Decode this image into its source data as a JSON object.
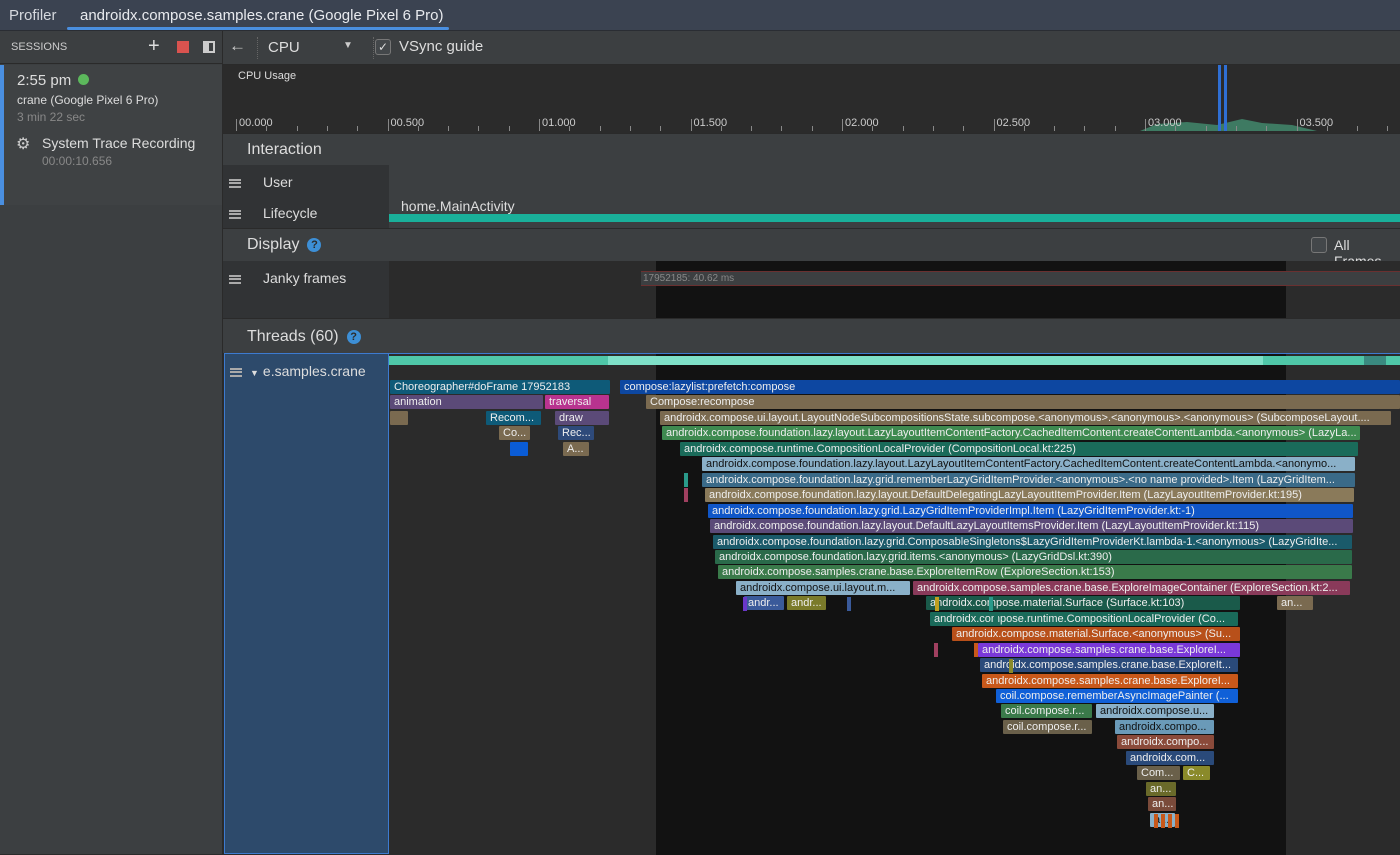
{
  "tabs": {
    "profiler": "Profiler",
    "active": "androidx.compose.samples.crane (Google Pixel 6 Pro)"
  },
  "sidebar": {
    "title": "SESSIONS",
    "session": {
      "time": "2:55 pm",
      "status_color": "#5cb85c",
      "device": "crane (Google Pixel 6 Pro)",
      "duration": "3 min 22 sec",
      "recording_title": "System Trace Recording",
      "recording_duration": "00:00:10.656"
    }
  },
  "toolbar": {
    "profiler_select": "CPU",
    "vsync_label": "VSync guide",
    "vsync_checked": true
  },
  "cpu": {
    "label": "CPU Usage",
    "ticks": [
      "00.000",
      "00.500",
      "01.000",
      "01.500",
      "02.000",
      "02.500",
      "03.000",
      "03.500"
    ]
  },
  "interaction": {
    "title": "Interaction",
    "rows": [
      "User",
      "Lifecycle"
    ],
    "lifecycle_event": "home.MainActivity"
  },
  "display": {
    "title": "Display",
    "all_frames_label": "All Frames",
    "all_frames_checked": false,
    "janky_label": "Janky frames",
    "janky_frame": "17952185: 40.62 ms"
  },
  "threads": {
    "title": "Threads (60)",
    "thread_name": "e.samples.crane",
    "slices": [
      {
        "label": "Choreographer#doFrame 17952183",
        "color": "#0e5a78"
      },
      {
        "label": "compose:lazylist:prefetch:compose",
        "color": "#0d47a1"
      },
      {
        "label": "animation",
        "color": "#5b4a78"
      },
      {
        "label": "traversal",
        "color": "#b8338f"
      },
      {
        "label": "Compose:recompose",
        "color": "#7a6a50"
      },
      {
        "label": "",
        "color": "#7a6a50"
      },
      {
        "label": "Recom...",
        "color": "#0e5a78"
      },
      {
        "label": "draw",
        "color": "#5b4a78"
      },
      {
        "label": "androidx.compose.ui.layout.LayoutNodeSubcompositionsState.subcompose.<anonymous>.<anonymous>.<anonymous> (SubcomposeLayout....",
        "color": "#7a6a50"
      },
      {
        "label": "Co...",
        "color": "#7a6a50"
      },
      {
        "label": "Rec...",
        "color": "#2e4a7a"
      },
      {
        "label": "androidx.compose.foundation.lazy.layout.LazyLayoutItemContentFactory.CachedItemContent.createContentLambda.<anonymous> (LazyLa...",
        "color": "#3e8a50"
      },
      {
        "label": "",
        "color": "#0a5cd6"
      },
      {
        "label": "A...",
        "color": "#7a6a50"
      },
      {
        "label": "androidx.compose.runtime.CompositionLocalProvider (CompositionLocal.kt:225)",
        "color": "#1a6b5a"
      },
      {
        "label": "androidx.compose.foundation.lazy.layout.LazyLayoutItemContentFactory.CachedItemContent.createContentLambda.<anonymo...",
        "color": "#8ab0c8"
      },
      {
        "label": "androidx.compose.foundation.lazy.grid.rememberLazyGridItemProvider.<anonymous>.<no name provided>.Item (LazyGridItem...",
        "color": "#3a6a88"
      },
      {
        "label": "androidx.compose.foundation.lazy.layout.DefaultDelegatingLazyLayoutItemProvider.Item (LazyLayoutItemProvider.kt:195)",
        "color": "#8a7a5a"
      },
      {
        "label": "androidx.compose.foundation.lazy.grid.LazyGridItemProviderImpl.Item (LazyGridItemProvider.kt:-1)",
        "color": "#1056c8"
      },
      {
        "label": "androidx.compose.foundation.lazy.layout.DefaultLazyLayoutItemsProvider.Item (LazyLayoutItemProvider.kt:115)",
        "color": "#5b4a78"
      },
      {
        "label": "androidx.compose.foundation.lazy.grid.ComposableSingletons$LazyGridItemProviderKt.lambda-1.<anonymous> (LazyGridIte...",
        "color": "#1a5a6a"
      },
      {
        "label": "androidx.compose.foundation.lazy.grid.items.<anonymous> (LazyGridDsl.kt:390)",
        "color": "#2a6a4a"
      },
      {
        "label": "androidx.compose.samples.crane.base.ExploreItemRow (ExploreSection.kt:153)",
        "color": "#3a7a4a"
      },
      {
        "label": "androidx.compose.ui.layout.m...",
        "color": "#8ab0c8"
      },
      {
        "label": "androidx.compose.samples.crane.base.ExploreImageContainer (ExploreSection.kt:2...",
        "color": "#8a3a5a"
      },
      {
        "label": "andr...",
        "color": "#3a5a9a"
      },
      {
        "label": "andr...",
        "color": "#7a7a2a"
      },
      {
        "label": "androidx.compose.material.Surface (Surface.kt:103)",
        "color": "#1a5a4a"
      },
      {
        "label": "an...",
        "color": "#7a6a50"
      },
      {
        "label": "androidx.compose.runtime.CompositionLocalProvider (Co...",
        "color": "#1a6a5a"
      },
      {
        "label": "androidx.compose.material.Surface.<anonymous> (Su...",
        "color": "#b8501a"
      },
      {
        "label": "androidx.compose.samples.crane.base.ExploreI...",
        "color": "#7a38d8"
      },
      {
        "label": "androidx.compose.samples.crane.base.ExploreIt...",
        "color": "#2a4a7a"
      },
      {
        "label": "androidx.compose.samples.crane.base.ExploreI...",
        "color": "#c8581a"
      },
      {
        "label": "coil.compose.rememberAsyncImagePainter (...",
        "color": "#1060d8"
      },
      {
        "label": "coil.compose.r...",
        "color": "#3a7a4a"
      },
      {
        "label": "androidx.compose.u...",
        "color": "#8ab0c8"
      },
      {
        "label": "coil.compose.r...",
        "color": "#6a604a"
      },
      {
        "label": "androidx.compo...",
        "color": "#6a9ab8"
      },
      {
        "label": "androidx.compo...",
        "color": "#8a4a3a"
      },
      {
        "label": "androidx.com...",
        "color": "#2a4a7a"
      },
      {
        "label": "Com...",
        "color": "#6a604a"
      },
      {
        "label": "C...",
        "color": "#8a8a2a"
      },
      {
        "label": "an...",
        "color": "#6a6a2a"
      },
      {
        "label": "an...",
        "color": "#7a4a3a"
      },
      {
        "label": "a...",
        "color": "#8ab0c8"
      }
    ]
  }
}
